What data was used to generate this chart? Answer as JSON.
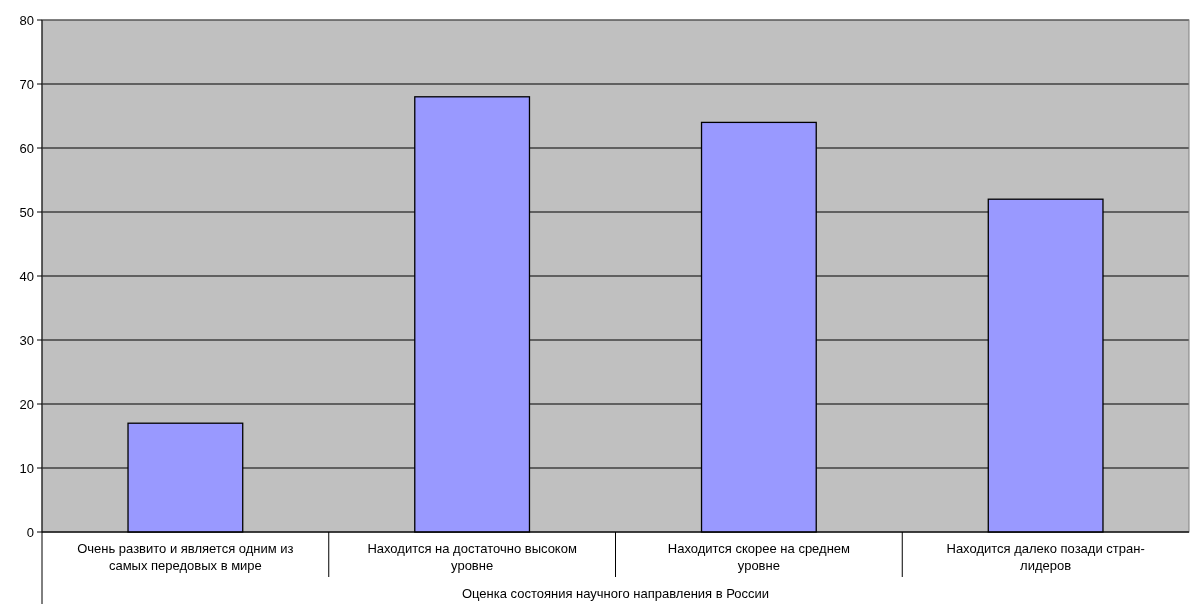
{
  "chart_data": {
    "type": "bar",
    "xlabel": "Оценка состояния научного направления в России",
    "categories": [
      "Очень развито и является одним из\nсамых передовых в мире",
      "Находится на достаточно высоком\nуровне",
      "Находится скорее на среднем\nуровне",
      "Находится далеко позади стран-\nлидеров"
    ],
    "values": [
      17,
      68,
      64,
      52
    ],
    "color": "#9999ff",
    "ylim": [
      0,
      80
    ],
    "yticks": [
      0,
      10,
      20,
      30,
      40,
      50,
      60,
      70,
      80
    ],
    "grid": "y"
  }
}
